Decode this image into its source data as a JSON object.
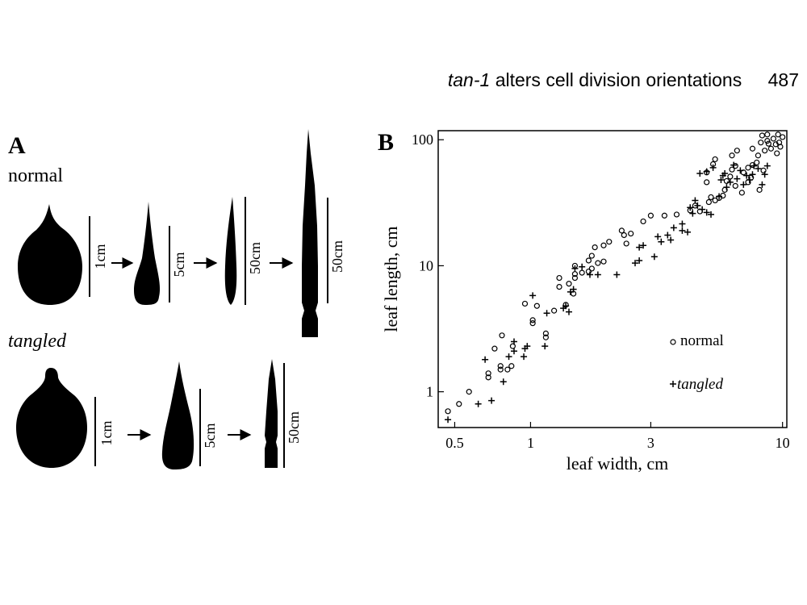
{
  "header": {
    "gene": "tan-1",
    "title": "alters cell division orientations",
    "page_number": "487"
  },
  "panel_a": {
    "label": "A",
    "rows": [
      {
        "name": "normal",
        "scales": [
          "1cm",
          "5cm",
          "50cm",
          "50cm"
        ]
      },
      {
        "name": "tangled",
        "scales": [
          "1cm",
          "5cm",
          "50cm"
        ]
      }
    ]
  },
  "panel_b": {
    "label": "B",
    "legend": {
      "normal": "normal",
      "tangled": "tangled"
    }
  },
  "chart_data": {
    "type": "scatter",
    "xscale": "log",
    "yscale": "log",
    "xlabel": "leaf width, cm",
    "ylabel": "leaf length, cm",
    "xlim": [
      0.43,
      10.4
    ],
    "ylim": [
      0.52,
      118
    ],
    "xticks": [
      0.5,
      1,
      3,
      10
    ],
    "xtick_labels": [
      "0.5",
      "1",
      "3",
      "10"
    ],
    "yticks": [
      1,
      10,
      100
    ],
    "ytick_labels": [
      "1",
      "10",
      "100"
    ],
    "legend_position": "lower-right",
    "series": [
      {
        "name": "normal",
        "marker": "circle",
        "points": [
          [
            0.47,
            0.7
          ],
          [
            0.52,
            0.8
          ],
          [
            0.57,
            1.0
          ],
          [
            0.68,
            1.3
          ],
          [
            0.68,
            1.4
          ],
          [
            0.72,
            2.2
          ],
          [
            0.76,
            1.5
          ],
          [
            0.76,
            1.6
          ],
          [
            0.77,
            2.8
          ],
          [
            0.81,
            1.5
          ],
          [
            0.84,
            1.6
          ],
          [
            0.85,
            2.3
          ],
          [
            0.95,
            5.0
          ],
          [
            1.02,
            3.5
          ],
          [
            1.02,
            3.7
          ],
          [
            1.06,
            4.8
          ],
          [
            1.15,
            2.7
          ],
          [
            1.15,
            2.9
          ],
          [
            1.24,
            4.4
          ],
          [
            1.3,
            6.8
          ],
          [
            1.3,
            8.0
          ],
          [
            1.38,
            4.9
          ],
          [
            1.42,
            7.2
          ],
          [
            1.48,
            6.0
          ],
          [
            1.5,
            8.0
          ],
          [
            1.5,
            8.6
          ],
          [
            1.5,
            10.0
          ],
          [
            1.6,
            8.8
          ],
          [
            1.7,
            9.0
          ],
          [
            1.7,
            11.0
          ],
          [
            1.75,
            9.5
          ],
          [
            1.75,
            12.0
          ],
          [
            1.8,
            14.0
          ],
          [
            1.85,
            10.5
          ],
          [
            1.95,
            10.8
          ],
          [
            1.95,
            14.5
          ],
          [
            2.05,
            15.5
          ],
          [
            2.3,
            19.0
          ],
          [
            2.35,
            17.5
          ],
          [
            2.4,
            15.0
          ],
          [
            2.5,
            18.0
          ],
          [
            2.8,
            22.5
          ],
          [
            3.0,
            25.0
          ],
          [
            3.4,
            25.0
          ],
          [
            3.8,
            25.5
          ],
          [
            4.3,
            27.5
          ],
          [
            4.5,
            30.0
          ],
          [
            4.7,
            27.0
          ],
          [
            5.1,
            32.0
          ],
          [
            5.2,
            35.0
          ],
          [
            5.4,
            33.0
          ],
          [
            5.6,
            34.5
          ],
          [
            5.0,
            46.0
          ],
          [
            5.0,
            55.0
          ],
          [
            5.3,
            64.0
          ],
          [
            5.4,
            70.0
          ],
          [
            5.8,
            36.0
          ],
          [
            5.9,
            40.0
          ],
          [
            6.0,
            47.0
          ],
          [
            6.2,
            51.0
          ],
          [
            6.3,
            58.0
          ],
          [
            6.3,
            75.0
          ],
          [
            6.5,
            43.0
          ],
          [
            6.5,
            62.0
          ],
          [
            6.6,
            82.0
          ],
          [
            6.9,
            38.0
          ],
          [
            7.0,
            55.0
          ],
          [
            7.3,
            46.0
          ],
          [
            7.3,
            60.0
          ],
          [
            7.5,
            50.0
          ],
          [
            7.6,
            85.0
          ],
          [
            7.6,
            63.0
          ],
          [
            7.9,
            66.0
          ],
          [
            8.0,
            75.0
          ],
          [
            8.1,
            40.0
          ],
          [
            8.2,
            95.0
          ],
          [
            8.3,
            108.0
          ],
          [
            8.4,
            57.0
          ],
          [
            8.5,
            82.0
          ],
          [
            8.7,
            110.0
          ],
          [
            8.7,
            98.0
          ],
          [
            8.8,
            93.0
          ],
          [
            9.0,
            85.0
          ],
          [
            9.2,
            102.0
          ],
          [
            9.4,
            92.0
          ],
          [
            9.5,
            78.0
          ],
          [
            9.6,
            110.0
          ],
          [
            9.7,
            95.0
          ],
          [
            9.8,
            88.0
          ],
          [
            10.0,
            105.0
          ]
        ]
      },
      {
        "name": "tangled",
        "marker": "plus",
        "points": [
          [
            0.47,
            0.6
          ],
          [
            0.62,
            0.8
          ],
          [
            0.66,
            1.8
          ],
          [
            0.7,
            0.85
          ],
          [
            0.78,
            1.2
          ],
          [
            0.82,
            1.9
          ],
          [
            0.86,
            2.1
          ],
          [
            0.86,
            2.5
          ],
          [
            0.94,
            1.9
          ],
          [
            0.95,
            2.2
          ],
          [
            0.97,
            2.3
          ],
          [
            1.02,
            5.8
          ],
          [
            1.14,
            2.3
          ],
          [
            1.16,
            4.2
          ],
          [
            1.35,
            4.6
          ],
          [
            1.38,
            4.8
          ],
          [
            1.42,
            4.3
          ],
          [
            1.44,
            6.2
          ],
          [
            1.48,
            6.5
          ],
          [
            1.5,
            9.5
          ],
          [
            1.6,
            9.8
          ],
          [
            1.72,
            8.5
          ],
          [
            1.85,
            8.5
          ],
          [
            2.2,
            8.5
          ],
          [
            2.6,
            10.5
          ],
          [
            2.7,
            11.0
          ],
          [
            2.7,
            14.0
          ],
          [
            2.8,
            14.5
          ],
          [
            3.1,
            11.8
          ],
          [
            3.2,
            17.0
          ],
          [
            3.3,
            15.5
          ],
          [
            3.5,
            17.5
          ],
          [
            3.6,
            16.0
          ],
          [
            3.7,
            20.0
          ],
          [
            4.0,
            19.0
          ],
          [
            4.0,
            21.5
          ],
          [
            4.2,
            18.5
          ],
          [
            4.3,
            29.0
          ],
          [
            4.4,
            26.0
          ],
          [
            4.5,
            33.0
          ],
          [
            4.6,
            30.0
          ],
          [
            4.8,
            28.0
          ],
          [
            5.0,
            26.5
          ],
          [
            5.2,
            25.5
          ],
          [
            4.7,
            54.0
          ],
          [
            5.0,
            56.0
          ],
          [
            5.3,
            60.0
          ],
          [
            5.6,
            35.5
          ],
          [
            5.7,
            48.0
          ],
          [
            5.8,
            52.0
          ],
          [
            5.9,
            54.0
          ],
          [
            6.0,
            42.0
          ],
          [
            6.2,
            46.0
          ],
          [
            6.4,
            63.0
          ],
          [
            6.6,
            49.0
          ],
          [
            6.8,
            57.0
          ],
          [
            7.0,
            44.0
          ],
          [
            7.2,
            52.0
          ],
          [
            7.4,
            48.0
          ],
          [
            7.6,
            53.0
          ],
          [
            7.7,
            62.0
          ],
          [
            8.0,
            59.0
          ],
          [
            8.3,
            44.0
          ],
          [
            8.5,
            53.0
          ],
          [
            8.7,
            62.0
          ]
        ]
      }
    ]
  }
}
